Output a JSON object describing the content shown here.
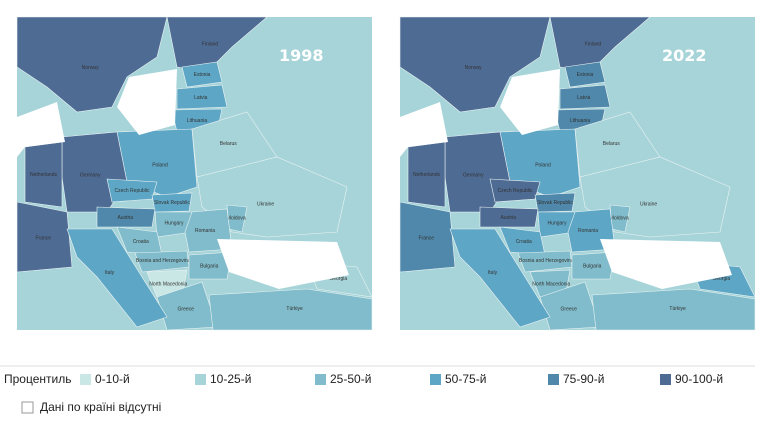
{
  "maps": [
    {
      "year": "1998",
      "countries": [
        {
          "name": "Norway",
          "class": 5
        },
        {
          "name": "Finland",
          "class": 5
        },
        {
          "name": "Estonia",
          "class": 3
        },
        {
          "name": "Latvia",
          "class": 3
        },
        {
          "name": "Lithuania",
          "class": 3
        },
        {
          "name": "Poland",
          "class": 3
        },
        {
          "name": "Belarus",
          "class": 1
        },
        {
          "name": "Ukraine",
          "class": 1
        },
        {
          "name": "Germany",
          "class": 5
        },
        {
          "name": "Netherlands",
          "class": 5
        },
        {
          "name": "France",
          "class": 5
        },
        {
          "name": "Czech Republic",
          "class": 3
        },
        {
          "name": "Slovak Republic",
          "class": 3
        },
        {
          "name": "Austria",
          "class": 4
        },
        {
          "name": "Hungary",
          "class": 2
        },
        {
          "name": "Moldova",
          "class": 2
        },
        {
          "name": "Romania",
          "class": 2
        },
        {
          "name": "Croatia",
          "class": 2
        },
        {
          "name": "Bosnia and Herzegovina",
          "class": 2
        },
        {
          "name": "Bulgaria",
          "class": 2
        },
        {
          "name": "North Macedonia",
          "class": 0
        },
        {
          "name": "Greece",
          "class": 2
        },
        {
          "name": "Italy",
          "class": 3
        },
        {
          "name": "Türkiye",
          "class": 2
        },
        {
          "name": "Georgia",
          "class": 1
        }
      ]
    },
    {
      "year": "2022",
      "countries": [
        {
          "name": "Norway",
          "class": 5
        },
        {
          "name": "Finland",
          "class": 5
        },
        {
          "name": "Estonia",
          "class": 4
        },
        {
          "name": "Latvia",
          "class": 4
        },
        {
          "name": "Lithuania",
          "class": 4
        },
        {
          "name": "Poland",
          "class": 3
        },
        {
          "name": "Belarus",
          "class": 1
        },
        {
          "name": "Ukraine",
          "class": 1
        },
        {
          "name": "Germany",
          "class": 5
        },
        {
          "name": "Netherlands",
          "class": 5
        },
        {
          "name": "France",
          "class": 4
        },
        {
          "name": "Czech Republic",
          "class": 5
        },
        {
          "name": "Slovak Republic",
          "class": 4
        },
        {
          "name": "Austria",
          "class": 5
        },
        {
          "name": "Hungary",
          "class": 3
        },
        {
          "name": "Moldova",
          "class": 2
        },
        {
          "name": "Romania",
          "class": 3
        },
        {
          "name": "Croatia",
          "class": 3
        },
        {
          "name": "Bosnia and Herzegovina",
          "class": 2
        },
        {
          "name": "Bulgaria",
          "class": 2
        },
        {
          "name": "North Macedonia",
          "class": 2
        },
        {
          "name": "Greece",
          "class": 2
        },
        {
          "name": "Italy",
          "class": 3
        },
        {
          "name": "Türkiye",
          "class": 2
        },
        {
          "name": "Georgia",
          "class": 3
        }
      ]
    }
  ],
  "legend": {
    "title": "Процентиль",
    "items": [
      {
        "label": "0-10-й",
        "color": "#c9e7e4"
      },
      {
        "label": "10-25-й",
        "color": "#a7d4d9"
      },
      {
        "label": "25-50-й",
        "color": "#80bccb"
      },
      {
        "label": "50-75-й",
        "color": "#5ea6c5"
      },
      {
        "label": "75-90-й",
        "color": "#4f88aa"
      },
      {
        "label": "90-100-й",
        "color": "#4e6b94"
      }
    ],
    "missing": "Дані по країні відсутні"
  }
}
